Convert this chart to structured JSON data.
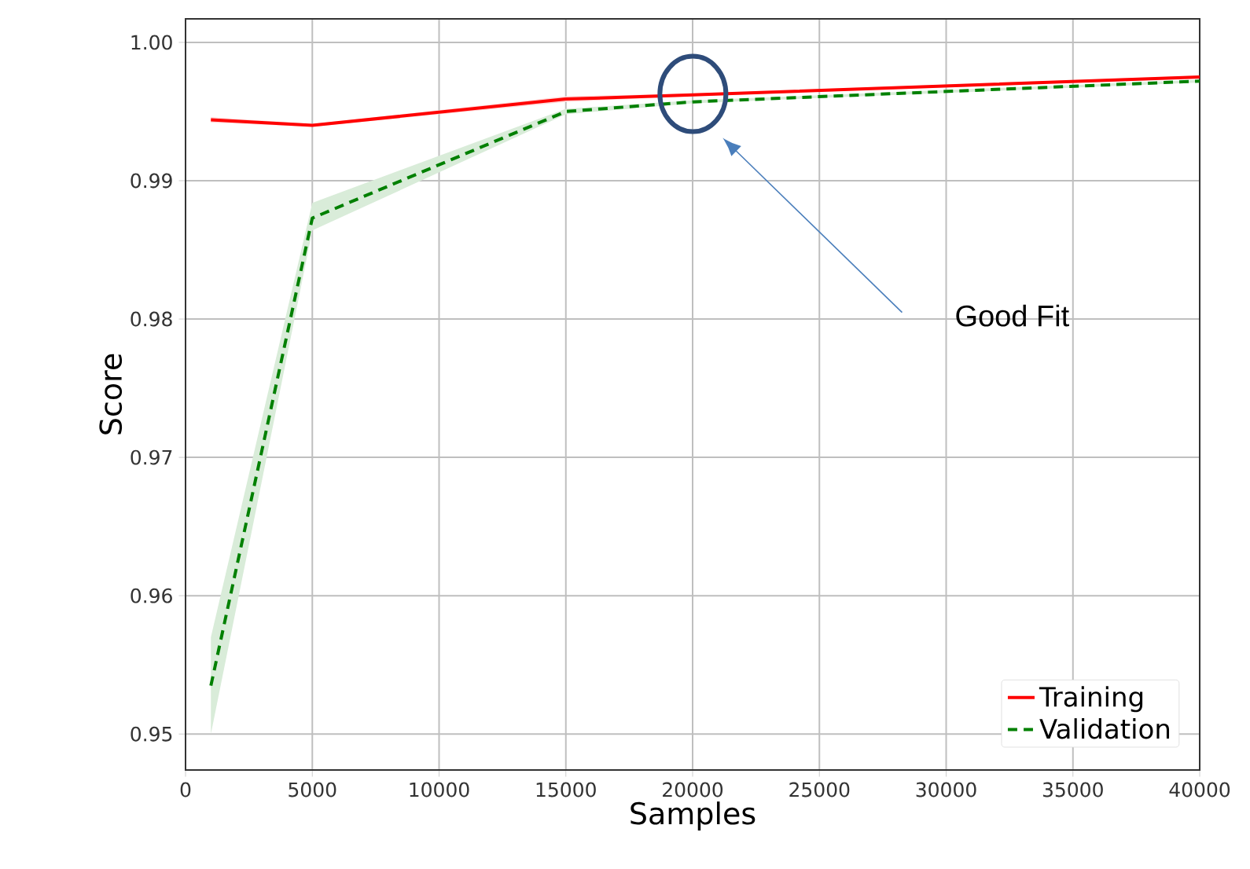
{
  "chart_data": {
    "type": "line",
    "xlabel": "Samples",
    "ylabel": "Score",
    "x": [
      1000,
      5000,
      15000,
      20000,
      40000
    ],
    "series": [
      {
        "name": "Training",
        "color": "#ff0000",
        "line_style": "solid",
        "values": [
          0.9944,
          0.994,
          0.9959,
          0.9962,
          0.9975
        ],
        "lower": [
          0.9942,
          0.9939,
          0.9957,
          0.9961,
          0.9974
        ],
        "upper": [
          0.9946,
          0.9941,
          0.9961,
          0.9963,
          0.9976
        ]
      },
      {
        "name": "Validation",
        "color": "#008000",
        "line_style": "dashed",
        "values": [
          0.9535,
          0.9873,
          0.995,
          0.9957,
          0.9972
        ],
        "lower": [
          0.95,
          0.9864,
          0.9948,
          0.9956,
          0.9971
        ],
        "upper": [
          0.957,
          0.9884,
          0.9952,
          0.9958,
          0.9973
        ]
      }
    ],
    "xlim": [
      0,
      40000
    ],
    "ylim": [
      0.9474,
      1.0017
    ],
    "xticks": [
      0,
      5000,
      10000,
      15000,
      20000,
      25000,
      30000,
      35000,
      40000
    ],
    "yticks": [
      0.95,
      0.96,
      0.97,
      0.98,
      0.99,
      {
        "value": 1.0,
        "label": "1.00"
      }
    ],
    "grid": true,
    "legend": "bottom right",
    "annotations": [
      "Good Fit"
    ]
  }
}
